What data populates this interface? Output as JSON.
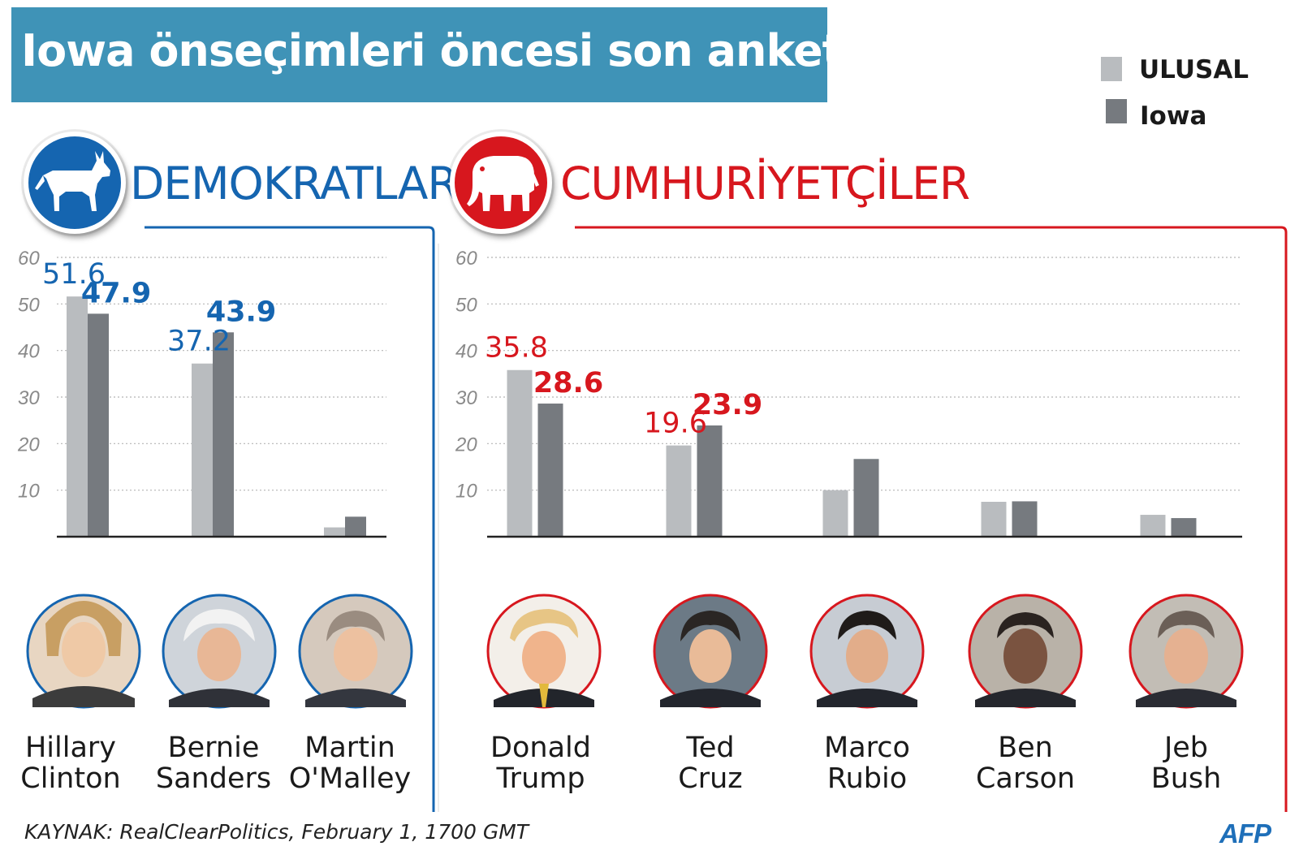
{
  "title": "Iowa önseçimleri öncesi son anketler",
  "legend": {
    "national": {
      "label": "ULUSAL",
      "color": "#b9bcbf"
    },
    "iowa": {
      "label": "Iowa",
      "color": "#767a7f"
    }
  },
  "parties": {
    "dem": {
      "name": "DEMOKRATLAR",
      "color": "#1565b0",
      "icon": "donkey-icon"
    },
    "rep": {
      "name": "CUMHURİYETÇİLER",
      "color": "#d7171e",
      "icon": "elephant-icon"
    }
  },
  "candidates": {
    "clinton": {
      "line1": "Hillary",
      "line2": "Clinton"
    },
    "sanders": {
      "line1": "Bernie",
      "line2": "Sanders"
    },
    "omalley": {
      "line1": "Martin",
      "line2": "O'Malley"
    },
    "trump": {
      "line1": "Donald",
      "line2": "Trump"
    },
    "cruz": {
      "line1": "Ted",
      "line2": "Cruz"
    },
    "rubio": {
      "line1": "Marco",
      "line2": "Rubio"
    },
    "carson": {
      "line1": "Ben",
      "line2": "Carson"
    },
    "bush": {
      "line1": "Jeb",
      "line2": "Bush"
    }
  },
  "source": "KAYNAK: RealClearPolitics, February 1, 1700 GMT",
  "brand": "AFP",
  "chart_data": [
    {
      "type": "bar",
      "title": "DEMOKRATLAR",
      "categories": [
        "Hillary Clinton",
        "Bernie Sanders",
        "Martin O'Malley"
      ],
      "series": [
        {
          "name": "ULUSAL",
          "values": [
            51.6,
            37.2,
            2.0
          ]
        },
        {
          "name": "Iowa",
          "values": [
            47.9,
            43.9,
            4.3
          ]
        }
      ],
      "labels": {
        "ULUSAL": [
          "51.6",
          "37.2",
          ""
        ],
        "Iowa": [
          "47.9",
          "43.9",
          ""
        ]
      },
      "yticks": [
        "10",
        "20",
        "30",
        "40",
        "50",
        "60"
      ],
      "ylim": [
        0,
        60
      ],
      "grid": true,
      "color": "#1565b0"
    },
    {
      "type": "bar",
      "title": "CUMHURİYETÇİLER",
      "categories": [
        "Donald Trump",
        "Ted Cruz",
        "Marco Rubio",
        "Ben Carson",
        "Jeb Bush"
      ],
      "series": [
        {
          "name": "ULUSAL",
          "values": [
            35.8,
            19.6,
            10.0,
            7.5,
            4.7
          ]
        },
        {
          "name": "Iowa",
          "values": [
            28.6,
            23.9,
            16.7,
            7.6,
            4.0
          ]
        }
      ],
      "labels": {
        "ULUSAL": [
          "35.8",
          "19.6",
          "",
          "",
          ""
        ],
        "Iowa": [
          "28.6",
          "23.9",
          "",
          "",
          ""
        ]
      },
      "yticks": [
        "10",
        "20",
        "30",
        "40",
        "50",
        "60"
      ],
      "ylim": [
        0,
        60
      ],
      "grid": true,
      "color": "#d7171e"
    }
  ]
}
